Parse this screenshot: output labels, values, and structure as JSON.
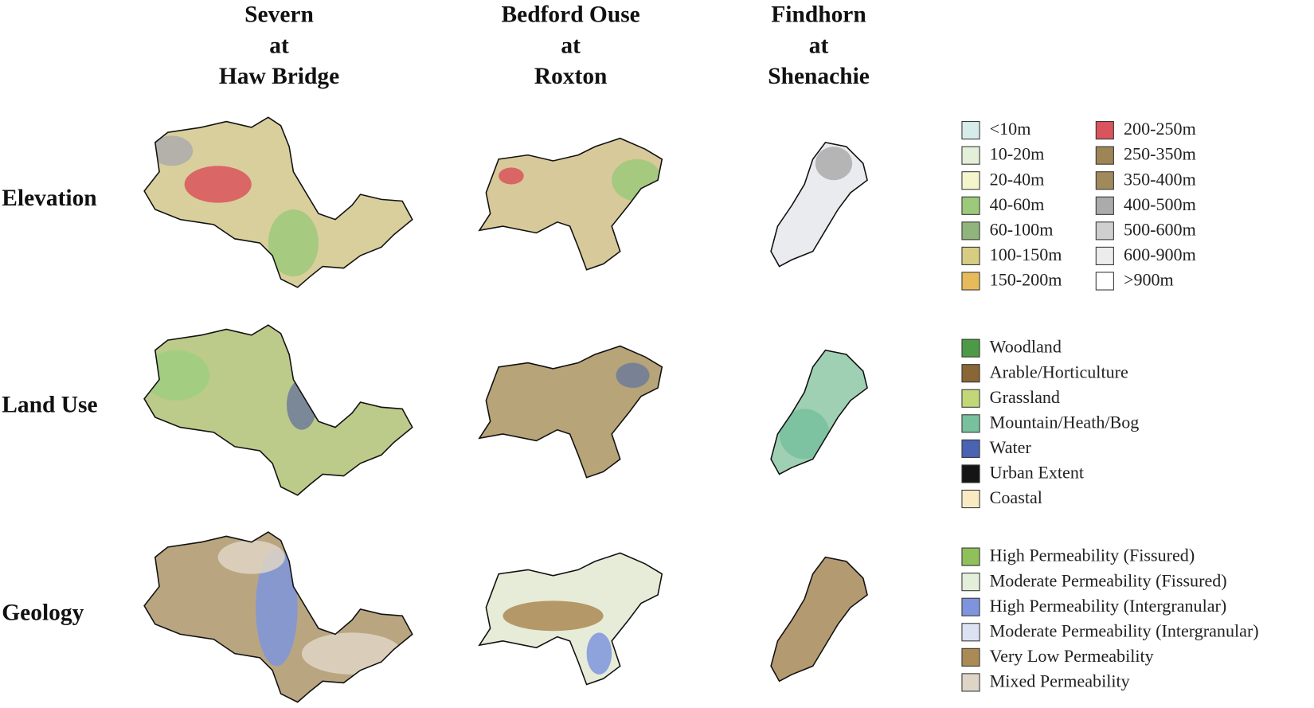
{
  "columns": [
    {
      "lines": [
        "Severn",
        "at",
        "Haw Bridge"
      ]
    },
    {
      "lines": [
        "Bedford Ouse",
        "at",
        "Roxton"
      ]
    },
    {
      "lines": [
        "Findhorn",
        "at",
        "Shenachie"
      ]
    }
  ],
  "rows": [
    "Elevation",
    "Land Use",
    "Geology"
  ],
  "legends": [
    {
      "items": [
        {
          "label": "<10m",
          "color": "#d6ecea"
        },
        {
          "label": "10-20m",
          "color": "#e3efd6"
        },
        {
          "label": "20-40m",
          "color": "#f5f5cc"
        },
        {
          "label": "40-60m",
          "color": "#9cc97a"
        },
        {
          "label": "60-100m",
          "color": "#8fb57c"
        },
        {
          "label": "100-150m",
          "color": "#d7cd82"
        },
        {
          "label": "150-200m",
          "color": "#e7bb5a"
        },
        {
          "label": "200-250m",
          "color": "#d9545c"
        },
        {
          "label": "250-350m",
          "color": "#9e8556"
        },
        {
          "label": "350-400m",
          "color": "#a08a5c"
        },
        {
          "label": "400-500m",
          "color": "#ababab"
        },
        {
          "label": "500-600m",
          "color": "#cfcfcf"
        },
        {
          "label": "600-900m",
          "color": "#ececec"
        },
        {
          "label": ">900m",
          "color": "#ffffff"
        }
      ]
    },
    {
      "items": [
        {
          "label": "Woodland",
          "color": "#4c9a45"
        },
        {
          "label": "Arable/Horticulture",
          "color": "#8a6536"
        },
        {
          "label": "Grassland",
          "color": "#c2d878"
        },
        {
          "label": "Mountain/Heath/Bog",
          "color": "#78c19e"
        },
        {
          "label": "Water",
          "color": "#4a63b3"
        },
        {
          "label": "Urban Extent",
          "color": "#151515"
        },
        {
          "label": "Coastal",
          "color": "#f8ebc3"
        }
      ]
    },
    {
      "items": [
        {
          "label": "High Permeability (Fissured)",
          "color": "#8fc05a"
        },
        {
          "label": "Moderate Permeability (Fissured)",
          "color": "#e3efd9"
        },
        {
          "label": "High Permeability (Intergranular)",
          "color": "#7e95dd"
        },
        {
          "label": "Moderate Permeability (Intergranular)",
          "color": "#dde2f2"
        },
        {
          "label": "Very Low Permeability",
          "color": "#ab8a55"
        },
        {
          "label": "Mixed Permeability",
          "color": "#dfd5c6"
        }
      ]
    }
  ]
}
